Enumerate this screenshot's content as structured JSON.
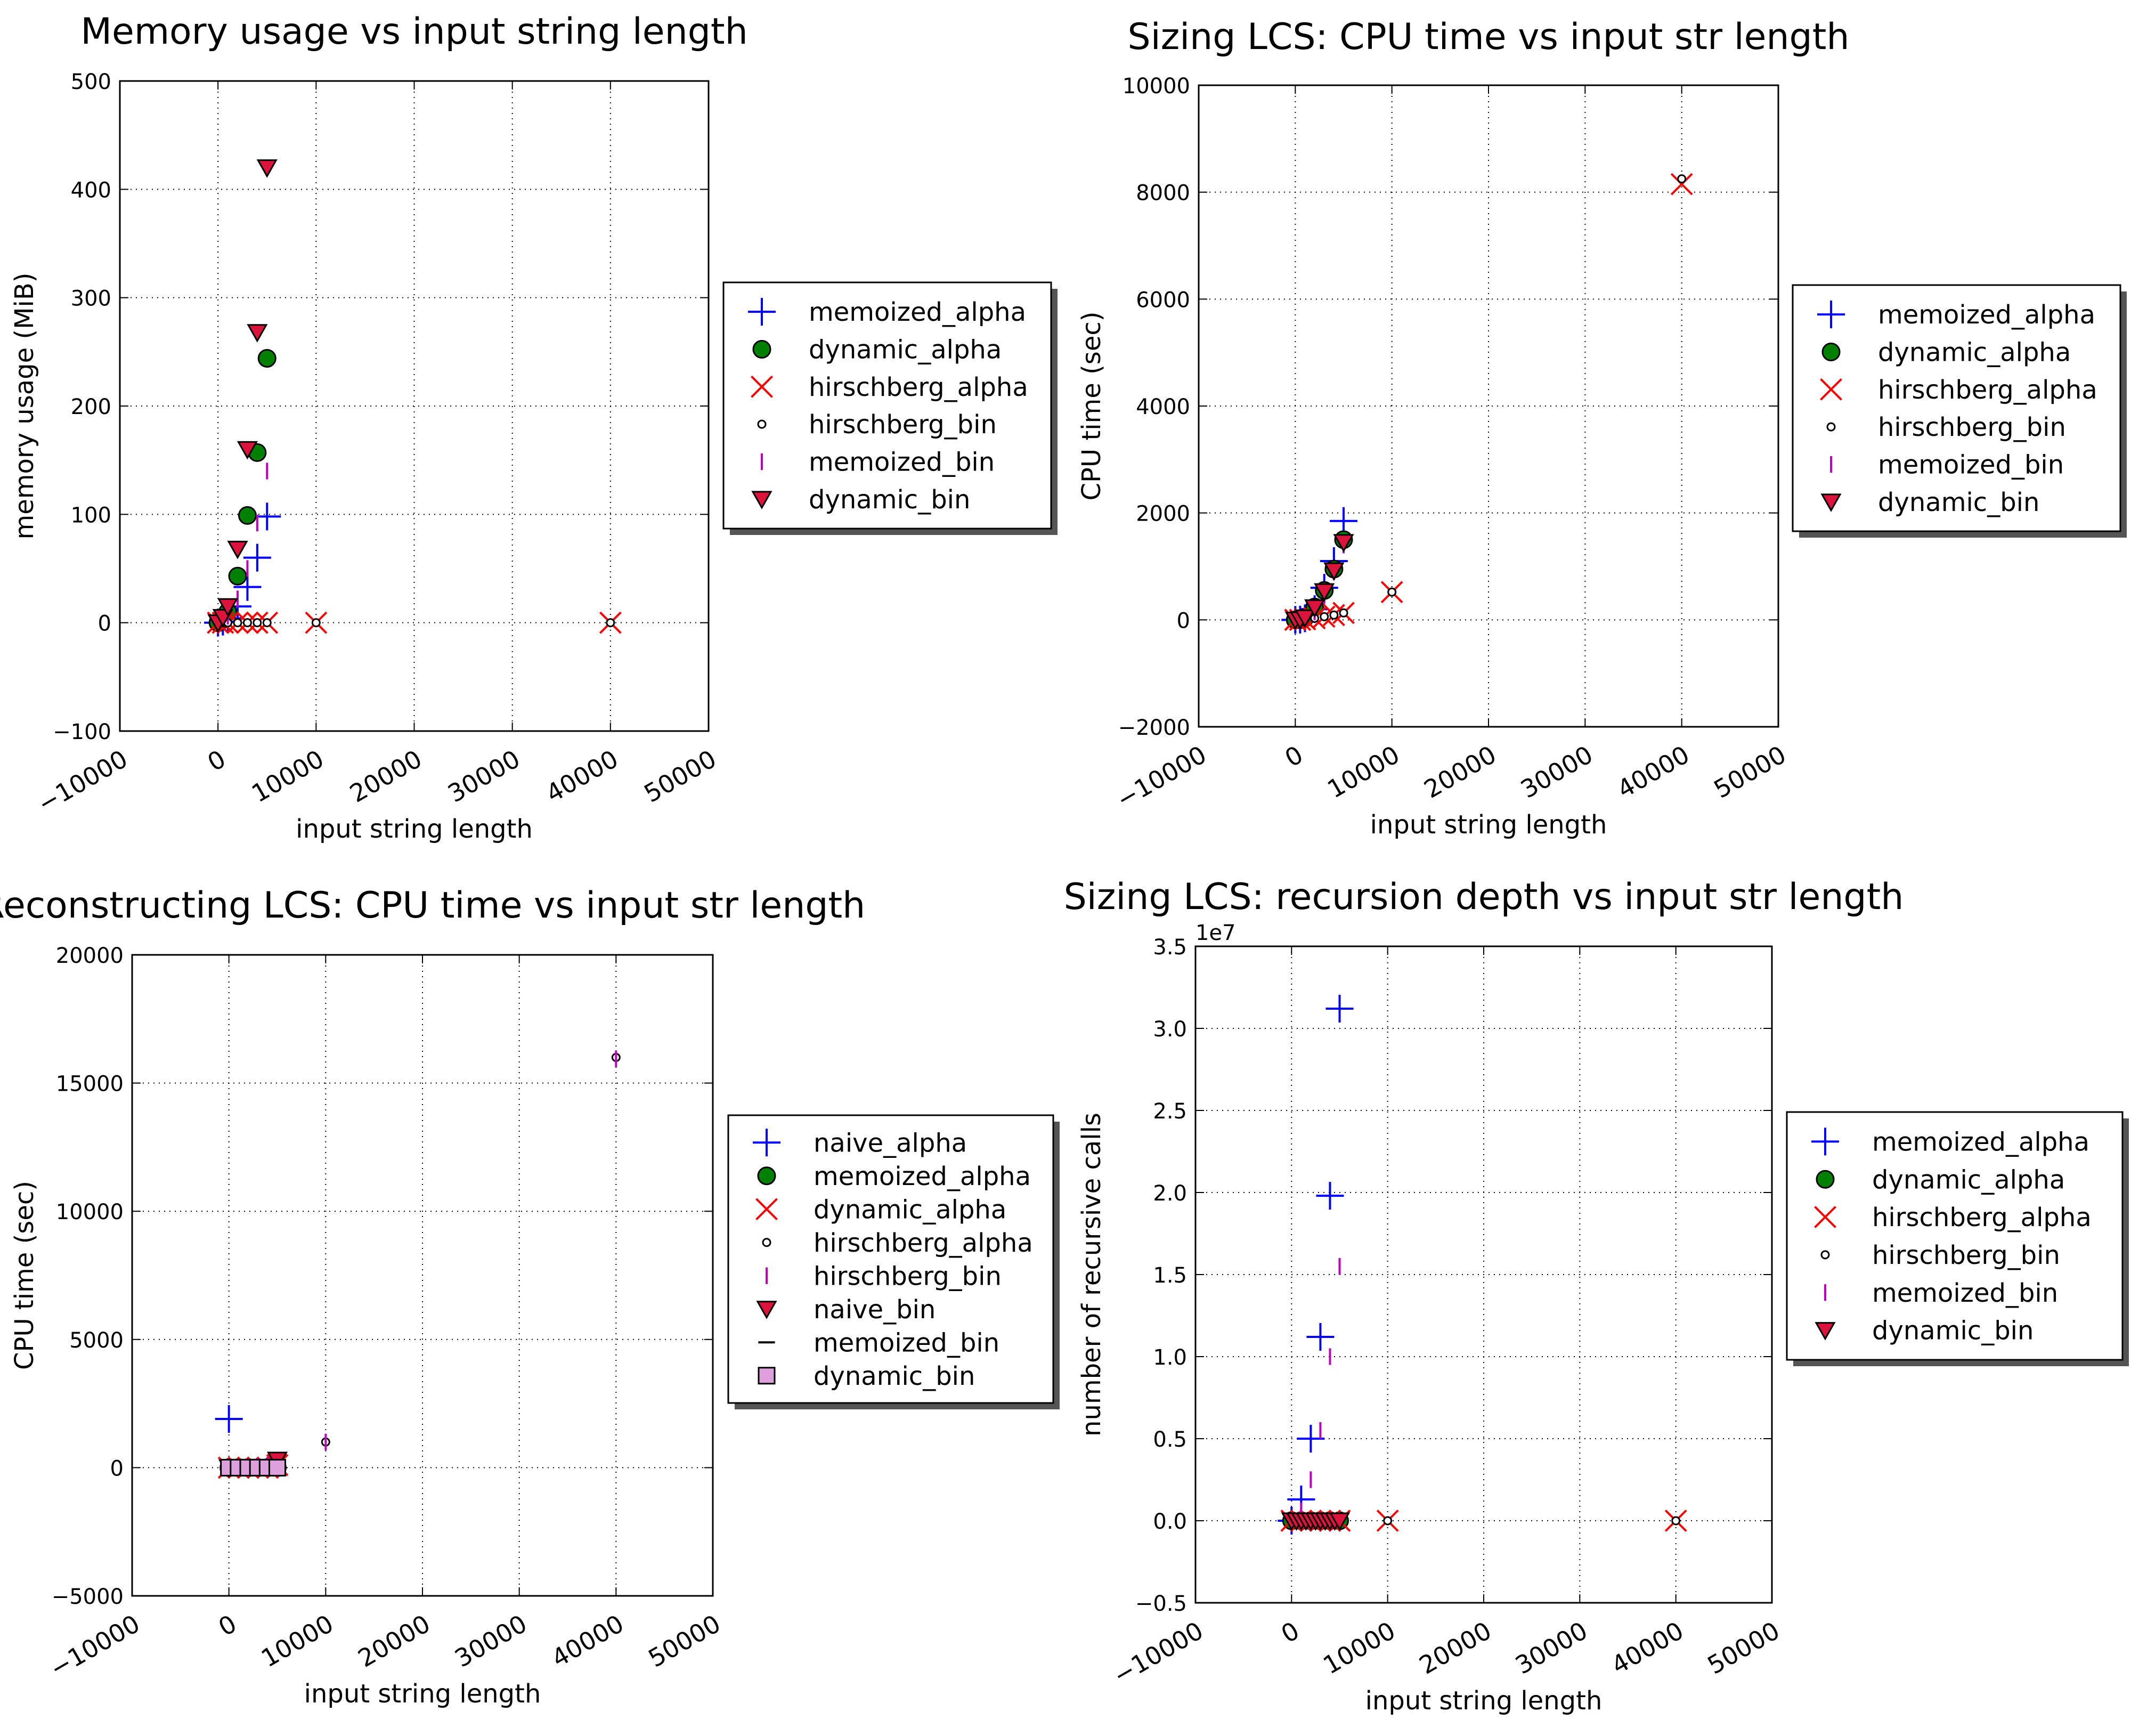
{
  "chart_data": [
    {
      "type": "scatter",
      "title": "Memory usage vs input string length",
      "xlabel": "input string length",
      "ylabel": "memory usage (MiB)",
      "xlim": [
        -10000,
        50000
      ],
      "ylim": [
        -100,
        500
      ],
      "xticks": [
        -10000,
        0,
        10000,
        20000,
        30000,
        40000,
        50000
      ],
      "xtick_labels": [
        "−10000",
        "0",
        "10000",
        "20000",
        "30000",
        "40000",
        "50000"
      ],
      "yticks": [
        -100,
        0,
        100,
        200,
        300,
        400,
        500
      ],
      "ytick_labels": [
        "−100",
        "0",
        "100",
        "200",
        "300",
        "400",
        "500"
      ],
      "y_offset_label": "",
      "grid": true,
      "legend": "outside-right",
      "series": [
        {
          "name": "memoized_alpha",
          "marker": "plus",
          "color": "#0000ff",
          "x": [
            0,
            500,
            1000,
            2000,
            3000,
            4000,
            5000
          ],
          "y": [
            0,
            1,
            4,
            15,
            33,
            60,
            98
          ]
        },
        {
          "name": "dynamic_alpha",
          "marker": "circle",
          "color": "#008000",
          "x": [
            0,
            500,
            1000,
            2000,
            3000,
            4000,
            5000
          ],
          "y": [
            0,
            3,
            10,
            43,
            99,
            157,
            244
          ]
        },
        {
          "name": "hirschberg_alpha",
          "marker": "x",
          "color": "#ff0000",
          "x": [
            0,
            500,
            1000,
            2000,
            3000,
            4000,
            5000,
            10000,
            40000
          ],
          "y": [
            0,
            0,
            0,
            0,
            0,
            0,
            0,
            0,
            0
          ]
        },
        {
          "name": "hirschberg_bin",
          "marker": "smallcircle",
          "color": "#000000",
          "x": [
            0,
            500,
            1000,
            2000,
            3000,
            4000,
            5000,
            10000,
            40000
          ],
          "y": [
            0,
            0,
            0,
            0,
            0,
            0,
            0,
            0,
            0
          ]
        },
        {
          "name": "memoized_bin",
          "marker": "vline",
          "color": "#bf00bf",
          "x": [
            0,
            1000,
            2000,
            3000,
            4000,
            5000
          ],
          "y": [
            0,
            6,
            22,
            50,
            92,
            140
          ]
        },
        {
          "name": "dynamic_bin",
          "marker": "triangle",
          "color": "#dc143c",
          "x": [
            0,
            500,
            1000,
            2000,
            3000,
            4000,
            5000
          ],
          "y": [
            0,
            5,
            15,
            68,
            160,
            268,
            420
          ]
        }
      ]
    },
    {
      "type": "scatter",
      "title": "Sizing LCS: CPU time vs input str length",
      "xlabel": "input string length",
      "ylabel": "CPU time (sec)",
      "xlim": [
        -10000,
        50000
      ],
      "ylim": [
        -2000,
        10000
      ],
      "xticks": [
        -10000,
        0,
        10000,
        20000,
        30000,
        40000,
        50000
      ],
      "xtick_labels": [
        "−10000",
        "0",
        "10000",
        "20000",
        "30000",
        "40000",
        "50000"
      ],
      "yticks": [
        -2000,
        0,
        2000,
        4000,
        6000,
        8000,
        10000
      ],
      "ytick_labels": [
        "−2000",
        "0",
        "2000",
        "4000",
        "6000",
        "8000",
        "10000"
      ],
      "y_offset_label": "",
      "grid": true,
      "legend": "outside-right",
      "series": [
        {
          "name": "memoized_alpha",
          "marker": "plus",
          "color": "#0000ff",
          "x": [
            0,
            500,
            1000,
            2000,
            3000,
            4000,
            5000
          ],
          "y": [
            0,
            5,
            30,
            200,
            600,
            1100,
            1850
          ]
        },
        {
          "name": "dynamic_alpha",
          "marker": "circle",
          "color": "#008000",
          "x": [
            0,
            500,
            1000,
            2000,
            3000,
            4000,
            5000
          ],
          "y": [
            0,
            5,
            40,
            240,
            550,
            950,
            1500
          ]
        },
        {
          "name": "hirschberg_alpha",
          "marker": "x",
          "color": "#ff0000",
          "x": [
            0,
            500,
            1000,
            2000,
            3000,
            4000,
            5000,
            10000,
            40000
          ],
          "y": [
            0,
            0,
            10,
            30,
            60,
            90,
            130,
            520,
            8150
          ]
        },
        {
          "name": "hirschberg_bin",
          "marker": "smallcircle",
          "color": "#000000",
          "x": [
            0,
            500,
            1000,
            2000,
            3000,
            4000,
            5000,
            10000,
            40000
          ],
          "y": [
            0,
            0,
            10,
            30,
            60,
            90,
            130,
            520,
            8250
          ]
        },
        {
          "name": "memoized_bin",
          "marker": "vline",
          "color": "#bf00bf",
          "x": [
            0,
            1000,
            2000,
            3000,
            4000,
            5000
          ],
          "y": [
            0,
            20,
            150,
            450,
            900,
            1400
          ]
        },
        {
          "name": "dynamic_bin",
          "marker": "triangle",
          "color": "#dc143c",
          "x": [
            0,
            500,
            1000,
            2000,
            3000,
            4000,
            5000
          ],
          "y": [
            0,
            5,
            40,
            230,
            530,
            920,
            1450
          ]
        }
      ]
    },
    {
      "type": "scatter",
      "title": "Reconstructing LCS: CPU time vs input str length",
      "xlabel": "input string length",
      "ylabel": "CPU time (sec)",
      "xlim": [
        -10000,
        50000
      ],
      "ylim": [
        -5000,
        20000
      ],
      "xticks": [
        -10000,
        0,
        10000,
        20000,
        30000,
        40000,
        50000
      ],
      "xtick_labels": [
        "−10000",
        "0",
        "10000",
        "20000",
        "30000",
        "40000",
        "50000"
      ],
      "yticks": [
        -5000,
        0,
        5000,
        10000,
        15000,
        20000
      ],
      "ytick_labels": [
        "−5000",
        "0",
        "5000",
        "10000",
        "15000",
        "20000"
      ],
      "y_offset_label": "",
      "grid": true,
      "legend": "outside-right",
      "series": [
        {
          "name": "naive_alpha",
          "marker": "plus",
          "color": "#0000ff",
          "x": [
            0
          ],
          "y": [
            1900
          ]
        },
        {
          "name": "memoized_alpha",
          "marker": "circle",
          "color": "#008000",
          "x": [
            0,
            1000,
            2000,
            3000,
            4000,
            5000
          ],
          "y": [
            0,
            0,
            0,
            0,
            0,
            0
          ]
        },
        {
          "name": "dynamic_alpha",
          "marker": "x",
          "color": "#ff0000",
          "x": [
            0,
            1000,
            2000,
            3000,
            4000,
            5000
          ],
          "y": [
            0,
            0,
            0,
            0,
            0,
            100
          ]
        },
        {
          "name": "hirschberg_alpha",
          "marker": "smallcircle",
          "color": "#000000",
          "x": [
            0,
            1000,
            2000,
            3000,
            4000,
            5000,
            10000,
            40000
          ],
          "y": [
            0,
            0,
            0,
            50,
            100,
            200,
            1000,
            16000
          ]
        },
        {
          "name": "hirschberg_bin",
          "marker": "vline",
          "color": "#bf00bf",
          "x": [
            0,
            1000,
            2000,
            3000,
            4000,
            5000,
            10000,
            40000
          ],
          "y": [
            0,
            0,
            0,
            50,
            100,
            200,
            1000,
            15950
          ]
        },
        {
          "name": "naive_bin",
          "marker": "triangle",
          "color": "#dc143c",
          "x": [
            0,
            5000
          ],
          "y": [
            0,
            300
          ]
        },
        {
          "name": "memoized_bin",
          "marker": "hline",
          "color": "#000000",
          "x": [
            0,
            1000,
            2000,
            3000,
            4000,
            5000
          ],
          "y": [
            0,
            0,
            0,
            0,
            0,
            0
          ]
        },
        {
          "name": "dynamic_bin",
          "marker": "square",
          "color": "#dda0dd",
          "x": [
            0,
            1000,
            2000,
            3000,
            4000,
            5000
          ],
          "y": [
            0,
            0,
            0,
            0,
            0,
            0
          ]
        }
      ]
    },
    {
      "type": "scatter",
      "title": "Sizing LCS: recursion depth vs input str length",
      "xlabel": "input string length",
      "ylabel": "number of recursive calls",
      "xlim": [
        -10000,
        50000
      ],
      "ylim": [
        -0.5,
        3.5
      ],
      "xticks": [
        -10000,
        0,
        10000,
        20000,
        30000,
        40000,
        50000
      ],
      "xtick_labels": [
        "−10000",
        "0",
        "10000",
        "20000",
        "30000",
        "40000",
        "50000"
      ],
      "yticks": [
        -0.5,
        0.0,
        0.5,
        1.0,
        1.5,
        2.0,
        2.5,
        3.0,
        3.5
      ],
      "ytick_labels": [
        "−0.5",
        "0.0",
        "0.5",
        "1.0",
        "1.5",
        "2.0",
        "2.5",
        "3.0",
        "3.5"
      ],
      "y_offset_label": "1e7",
      "grid": true,
      "legend": "outside-right",
      "series": [
        {
          "name": "memoized_alpha",
          "marker": "plus",
          "color": "#0000ff",
          "x": [
            0,
            1000,
            2000,
            3000,
            4000,
            5000
          ],
          "y": [
            0.0,
            0.13,
            0.5,
            1.12,
            1.98,
            3.12
          ]
        },
        {
          "name": "dynamic_alpha",
          "marker": "circle",
          "color": "#008000",
          "x": [
            0,
            1000,
            2000,
            3000,
            4000,
            5000
          ],
          "y": [
            0,
            0,
            0,
            0,
            0,
            0
          ]
        },
        {
          "name": "hirschberg_alpha",
          "marker": "x",
          "color": "#ff0000",
          "x": [
            0,
            1000,
            2000,
            3000,
            4000,
            5000,
            10000,
            40000
          ],
          "y": [
            0,
            0,
            0,
            0,
            0,
            0,
            0,
            0
          ]
        },
        {
          "name": "hirschberg_bin",
          "marker": "smallcircle",
          "color": "#000000",
          "x": [
            0,
            1000,
            2000,
            3000,
            4000,
            5000,
            10000,
            40000
          ],
          "y": [
            0,
            0,
            0,
            0,
            0,
            0,
            0,
            0
          ]
        },
        {
          "name": "memoized_bin",
          "marker": "vline",
          "color": "#bf00bf",
          "x": [
            0,
            1000,
            2000,
            3000,
            4000,
            5000
          ],
          "y": [
            0.0,
            0.06,
            0.25,
            0.55,
            1.0,
            1.55
          ]
        },
        {
          "name": "dynamic_bin",
          "marker": "triangle",
          "color": "#dc143c",
          "x": [
            0,
            500,
            1000,
            1500,
            2000,
            2500,
            3000,
            3500,
            4000,
            4500,
            5000
          ],
          "y": [
            0,
            0,
            0,
            0,
            0,
            0,
            0,
            0,
            0,
            0,
            0
          ]
        }
      ]
    }
  ]
}
